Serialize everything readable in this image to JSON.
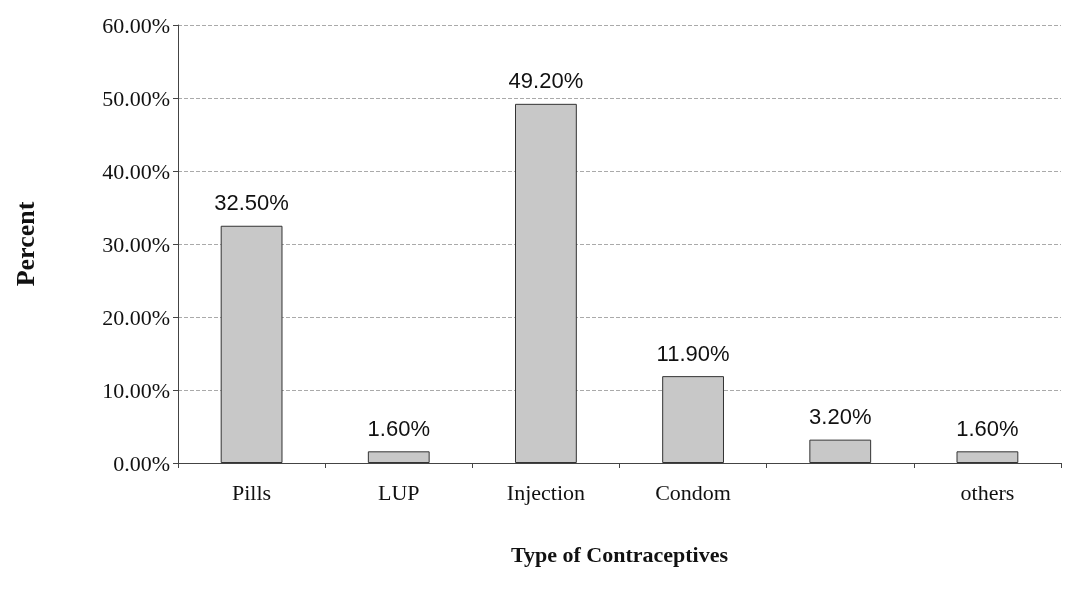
{
  "chart_data": {
    "type": "bar",
    "xlabel": "Type of Contraceptives",
    "ylabel": "Percent",
    "categories": [
      "Pills",
      "LUP",
      "Injection",
      "Condom",
      null,
      "others"
    ],
    "values": [
      32.5,
      1.6,
      49.2,
      11.9,
      3.2,
      1.6
    ],
    "value_labels": [
      "32.50%",
      "1.60%",
      "49.20%",
      "11.90%",
      "3.20%",
      "1.60%"
    ],
    "color": "#c8c8c8",
    "ylim": [
      0,
      60
    ],
    "yticks": [
      {
        "value": 0,
        "label": "0.00%"
      },
      {
        "value": 10,
        "label": "10.00%"
      },
      {
        "value": 20,
        "label": "20.00%"
      },
      {
        "value": 30,
        "label": "30.00%"
      },
      {
        "value": 40,
        "label": "40.00%"
      },
      {
        "value": 50,
        "label": "50.00%"
      },
      {
        "value": 60,
        "label": "60.00%"
      }
    ],
    "grid": "y"
  }
}
